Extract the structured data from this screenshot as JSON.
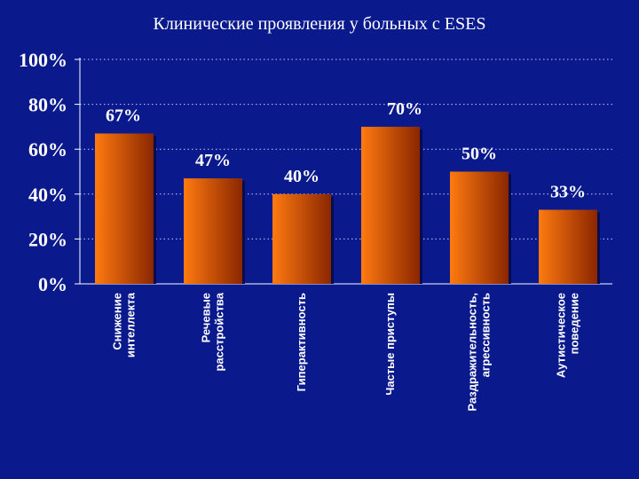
{
  "title": "Клинические проявления у больных с ESES",
  "colors": {
    "background": "#0a1a8c",
    "bar_light": "#ff7a10",
    "bar_dark": "#8a2600",
    "gridline": "#c8c8ff"
  },
  "chart_data": {
    "type": "bar",
    "title": "Клинические проявления у больных с ESES",
    "categories": [
      [
        "Снижение",
        "интеллекта"
      ],
      [
        "Речевые",
        "расстройства"
      ],
      [
        "Гиперактивность"
      ],
      [
        "Частые приступы"
      ],
      [
        "Раздражительность,",
        "агрессивность"
      ],
      [
        "Аутистическое",
        "поведение"
      ]
    ],
    "values": [
      67,
      47,
      40,
      70,
      50,
      33
    ],
    "data_labels": [
      "67%",
      "47%",
      "40%",
      "70%",
      "50%",
      "33%"
    ],
    "yticks": [
      "0%",
      "20%",
      "40%",
      "60%",
      "80%",
      "100%"
    ],
    "ylim": [
      0,
      100
    ],
    "grid": true,
    "legend": "none",
    "xlabel": "",
    "ylabel": ""
  }
}
